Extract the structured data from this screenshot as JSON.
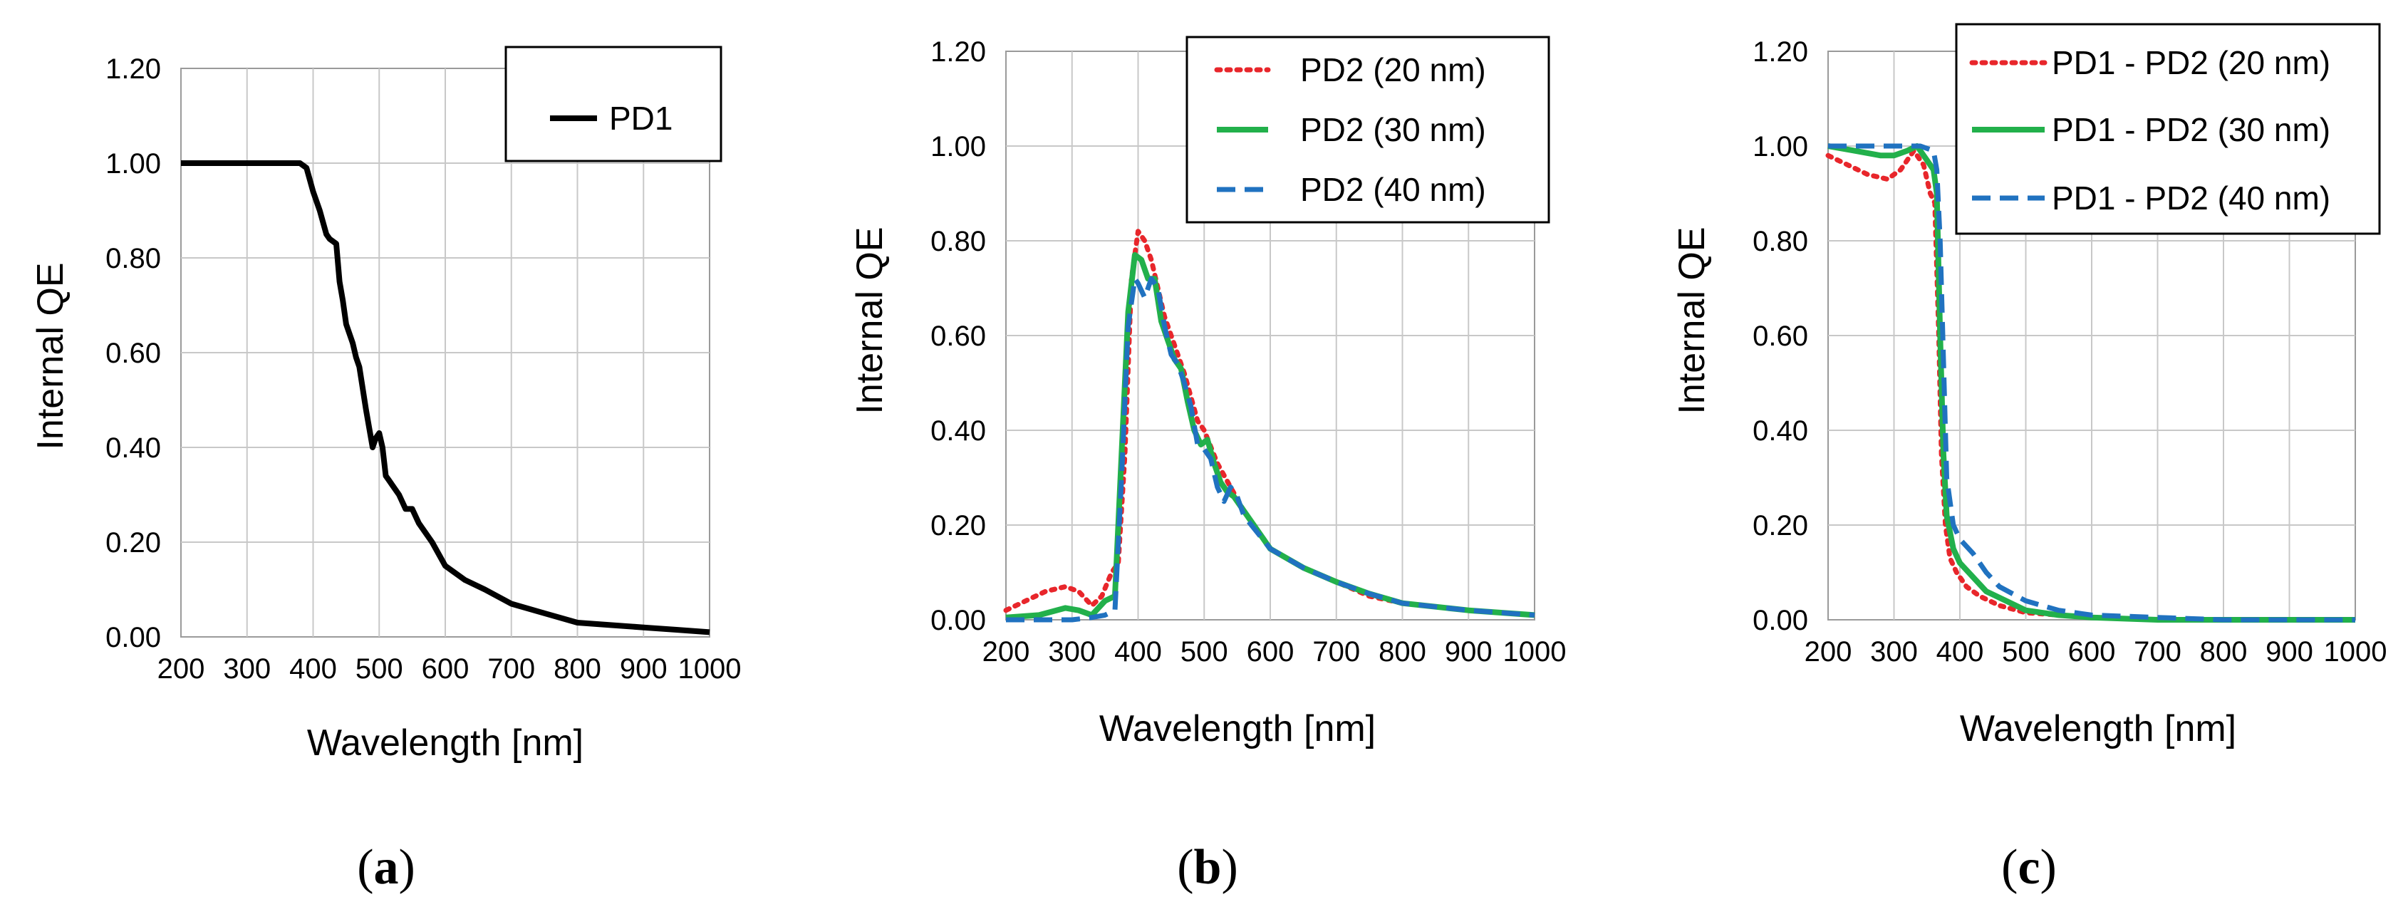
{
  "figure": {
    "panel_labels": [
      {
        "open": "(",
        "letter": "a",
        "close": ")"
      },
      {
        "open": "(",
        "letter": "b",
        "close": ")"
      },
      {
        "open": "(",
        "letter": "c",
        "close": ")"
      }
    ]
  },
  "chart_data": [
    {
      "type": "line",
      "title": "",
      "xlabel": "Wavelength [nm]",
      "ylabel": "Internal QE",
      "xlim": [
        200,
        1000
      ],
      "ylim": [
        0,
        1.2
      ],
      "xticks": [
        "200",
        "300",
        "400",
        "500",
        "600",
        "700",
        "800",
        "900",
        "1000"
      ],
      "yticks": [
        "0.00",
        "0.20",
        "0.40",
        "0.60",
        "0.80",
        "1.00",
        "1.20"
      ],
      "grid": true,
      "legend_position": "top-right",
      "series": [
        {
          "name": "PD1",
          "color": "#000000",
          "style": "solid",
          "x": [
            200,
            380,
            390,
            400,
            410,
            420,
            425,
            435,
            440,
            445,
            450,
            460,
            465,
            470,
            480,
            490,
            495,
            500,
            505,
            510,
            515,
            520,
            530,
            540,
            550,
            560,
            580,
            600,
            630,
            660,
            700,
            750,
            800,
            850,
            900,
            950,
            1000
          ],
          "y": [
            1.0,
            1.0,
            0.99,
            0.94,
            0.9,
            0.85,
            0.84,
            0.83,
            0.75,
            0.71,
            0.66,
            0.62,
            0.59,
            0.57,
            0.48,
            0.4,
            0.42,
            0.43,
            0.4,
            0.34,
            0.33,
            0.32,
            0.3,
            0.27,
            0.27,
            0.24,
            0.2,
            0.15,
            0.12,
            0.1,
            0.07,
            0.05,
            0.03,
            0.025,
            0.02,
            0.015,
            0.01
          ]
        }
      ]
    },
    {
      "type": "line",
      "title": "",
      "xlabel": "Wavelength [nm]",
      "ylabel": "Internal QE",
      "xlim": [
        200,
        1000
      ],
      "ylim": [
        0,
        1.2
      ],
      "xticks": [
        "200",
        "300",
        "400",
        "500",
        "600",
        "700",
        "800",
        "900",
        "1000"
      ],
      "yticks": [
        "0.00",
        "0.20",
        "0.40",
        "0.60",
        "0.80",
        "1.00",
        "1.20"
      ],
      "grid": true,
      "legend_position": "top-right",
      "series": [
        {
          "name": "PD2 (20 nm)",
          "color": "#e8262b",
          "style": "dotted",
          "x": [
            200,
            230,
            260,
            290,
            310,
            330,
            345,
            360,
            370,
            380,
            390,
            400,
            410,
            420,
            430,
            440,
            450,
            460,
            470,
            480,
            490,
            500,
            520,
            540,
            560,
            600,
            650,
            700,
            750,
            800,
            900,
            1000
          ],
          "y": [
            0.02,
            0.04,
            0.06,
            0.07,
            0.06,
            0.03,
            0.05,
            0.1,
            0.12,
            0.35,
            0.72,
            0.82,
            0.8,
            0.76,
            0.7,
            0.64,
            0.6,
            0.56,
            0.52,
            0.47,
            0.42,
            0.4,
            0.33,
            0.28,
            0.23,
            0.15,
            0.11,
            0.08,
            0.05,
            0.035,
            0.02,
            0.01
          ]
        },
        {
          "name": "PD2 (30 nm)",
          "color": "#22b04b",
          "style": "solid",
          "x": [
            200,
            250,
            290,
            310,
            330,
            350,
            365,
            375,
            385,
            395,
            405,
            415,
            425,
            435,
            445,
            455,
            465,
            475,
            485,
            495,
            505,
            515,
            525,
            535,
            545,
            555,
            600,
            650,
            700,
            750,
            800,
            900,
            1000
          ],
          "y": [
            0.005,
            0.01,
            0.025,
            0.02,
            0.01,
            0.04,
            0.05,
            0.35,
            0.65,
            0.77,
            0.76,
            0.72,
            0.72,
            0.63,
            0.59,
            0.55,
            0.53,
            0.46,
            0.4,
            0.37,
            0.38,
            0.33,
            0.29,
            0.27,
            0.26,
            0.24,
            0.15,
            0.11,
            0.08,
            0.055,
            0.035,
            0.02,
            0.01
          ]
        },
        {
          "name": "PD2 (40 nm)",
          "color": "#2072c0",
          "style": "dashed",
          "x": [
            200,
            260,
            300,
            330,
            350,
            365,
            375,
            385,
            395,
            400,
            410,
            420,
            430,
            440,
            450,
            460,
            470,
            480,
            490,
            500,
            510,
            520,
            530,
            540,
            550,
            560,
            600,
            650,
            700,
            750,
            800,
            900,
            1000
          ],
          "y": [
            0.0,
            0.0,
            0.0,
            0.005,
            0.01,
            0.02,
            0.3,
            0.62,
            0.72,
            0.71,
            0.68,
            0.72,
            0.7,
            0.62,
            0.56,
            0.54,
            0.5,
            0.45,
            0.37,
            0.36,
            0.34,
            0.28,
            0.25,
            0.28,
            0.26,
            0.22,
            0.15,
            0.11,
            0.08,
            0.055,
            0.035,
            0.02,
            0.01
          ]
        }
      ]
    },
    {
      "type": "line",
      "title": "",
      "xlabel": "Wavelength  [nm]",
      "ylabel": "Internal  QE",
      "xlim": [
        200,
        1000
      ],
      "ylim": [
        0,
        1.2
      ],
      "xticks": [
        "200",
        "300",
        "400",
        "500",
        "600",
        "700",
        "800",
        "900",
        "1000"
      ],
      "yticks": [
        "0.00",
        "0.20",
        "0.40",
        "0.60",
        "0.80",
        "1.00",
        "1.20"
      ],
      "grid": true,
      "legend_position": "top-right",
      "series": [
        {
          "name": "PD1 - PD2 (20 nm)",
          "color": "#e8262b",
          "style": "dotted",
          "x": [
            200,
            230,
            260,
            290,
            310,
            330,
            345,
            355,
            362,
            368,
            372,
            378,
            385,
            395,
            410,
            430,
            460,
            500,
            550,
            600,
            700,
            800,
            900,
            1000
          ],
          "y": [
            0.98,
            0.96,
            0.94,
            0.93,
            0.95,
            0.99,
            0.96,
            0.9,
            0.88,
            0.6,
            0.35,
            0.2,
            0.13,
            0.1,
            0.07,
            0.05,
            0.03,
            0.015,
            0.01,
            0.005,
            0.0,
            0.0,
            0.0,
            0.0
          ]
        },
        {
          "name": "PD1 - PD2 (30 nm)",
          "color": "#22b04b",
          "style": "solid",
          "x": [
            200,
            240,
            280,
            300,
            320,
            335,
            350,
            360,
            365,
            370,
            375,
            380,
            390,
            400,
            420,
            440,
            470,
            500,
            550,
            600,
            700,
            800,
            900,
            1000
          ],
          "y": [
            1.0,
            0.99,
            0.98,
            0.98,
            0.99,
            1.0,
            0.97,
            0.95,
            0.9,
            0.6,
            0.35,
            0.22,
            0.15,
            0.12,
            0.09,
            0.06,
            0.04,
            0.02,
            0.01,
            0.005,
            0.0,
            0.0,
            0.0,
            0.0
          ]
        },
        {
          "name": "PD1 - PD2 (40 nm)",
          "color": "#2072c0",
          "style": "dashed",
          "x": [
            200,
            250,
            300,
            340,
            360,
            365,
            370,
            375,
            380,
            390,
            400,
            420,
            440,
            460,
            500,
            550,
            600,
            700,
            800,
            900,
            1000
          ],
          "y": [
            1.0,
            1.0,
            1.0,
            1.0,
            0.99,
            0.95,
            0.8,
            0.55,
            0.3,
            0.2,
            0.17,
            0.14,
            0.1,
            0.07,
            0.04,
            0.02,
            0.01,
            0.005,
            0.0,
            0.0,
            0.0
          ]
        }
      ]
    }
  ]
}
